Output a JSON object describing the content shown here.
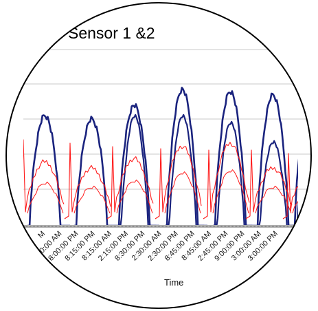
{
  "chart_data": {
    "type": "line",
    "title": "Sensor 1 &2",
    "xlabel": "Time",
    "ylabel": "",
    "grid": true,
    "legend": "none",
    "x_tick_labels": [
      "M",
      "2:00:00 AM",
      "8:00:00 PM",
      "8:15:00 PM",
      "8:15:00 AM",
      "2:15:00 PM",
      "8:30:00 PM",
      "2:30:00 AM",
      "2:30:00 PM",
      "8:45:00 PM",
      "8:45:00 AM",
      "2:45:00 PM",
      "9:00:00 PM",
      "3:00:00 AM",
      "3:00:00 PM"
    ],
    "series": [
      {
        "color": "#1a237e",
        "cycle_peaks": [
          160,
          155,
          175,
          198,
          195,
          190,
          180
        ],
        "cycle_shoulders": [
          0,
          0,
          160,
          160,
          150,
          122,
          120
        ]
      },
      {
        "color": "#ff1a1a",
        "cycle_spikes": [
          125,
          120,
          115,
          112,
          110,
          110,
          105
        ],
        "cycle_plateaus": [
          70,
          60,
          75,
          95,
          100,
          60,
          55
        ]
      }
    ],
    "colors": {
      "background": "#ffffff",
      "gridline": "#c8c8c8",
      "baseline": "#888888",
      "circle_border": "#000000"
    }
  }
}
